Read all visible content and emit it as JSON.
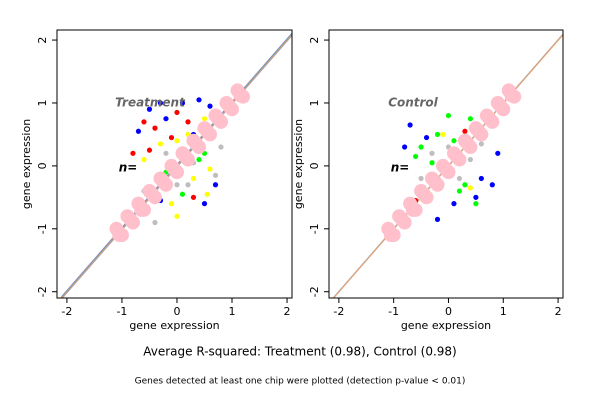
{
  "chart_data": [
    {
      "type": "scatter",
      "x_label": "gene expression",
      "y_label": "gene expression",
      "annotations": [
        "Treatment",
        "n="
      ],
      "xlim": [
        -2.18,
        2.09
      ],
      "ylim": [
        -2.1,
        2.16
      ],
      "xticks": [
        -2,
        -1,
        0,
        1,
        2
      ],
      "yticks": [
        -2,
        -1,
        0,
        1,
        2
      ],
      "diagonal_colors": [
        "#6b6bff",
        "#66cc66",
        "#ff7777",
        "#aaaaaa"
      ],
      "series": [
        {
          "color": "#0000ff",
          "x": [
            -0.5,
            -0.3,
            0.1,
            0.4,
            0.6,
            -0.7,
            -0.2,
            0.3,
            0.7,
            0.5,
            -0.85,
            -0.3
          ],
          "values": [
            0.9,
            1.0,
            1.0,
            1.05,
            0.95,
            0.55,
            0.75,
            0.5,
            -0.3,
            -0.6,
            -0.75,
            -0.55
          ]
        },
        {
          "color": "#ff0000",
          "x": [
            -0.6,
            -0.4,
            -0.1,
            0.2,
            -0.8,
            -0.5,
            0.0,
            -0.9,
            -0.6,
            0.3
          ],
          "values": [
            0.7,
            0.6,
            0.45,
            0.7,
            0.2,
            0.25,
            0.85,
            -0.85,
            -0.7,
            -0.5
          ]
        },
        {
          "color": "#ffff00",
          "x": [
            -0.3,
            0.0,
            0.2,
            0.5,
            -0.6,
            0.6,
            0.3,
            -0.1,
            0.55,
            0.0
          ],
          "values": [
            0.35,
            0.4,
            0.5,
            0.75,
            0.1,
            -0.05,
            -0.2,
            -0.6,
            -0.45,
            -0.8
          ]
        },
        {
          "color": "#00ff00",
          "x": [
            0.4,
            0.1,
            0.5,
            -0.2
          ],
          "values": [
            0.1,
            -0.45,
            0.2,
            -0.1
          ]
        },
        {
          "color": "#bebebe",
          "x": [
            -0.2,
            0.3,
            -0.6,
            0.2,
            0.7,
            -0.4,
            0.8,
            0.0
          ],
          "values": [
            0.2,
            0.05,
            -0.4,
            -0.3,
            -0.15,
            -0.9,
            0.3,
            -0.3
          ]
        },
        {
          "color": "#ffc0cb",
          "x": [
            -1.1,
            -1.0,
            -0.9,
            -0.8,
            -0.7,
            -0.6,
            -0.5,
            -0.4,
            -0.3,
            -0.2,
            -0.1,
            0,
            0.1,
            0.2,
            0.3,
            0.4,
            0.5,
            0.6,
            0.7,
            0.8,
            0.9,
            1.0,
            1.1,
            1.2,
            -1.05,
            -0.85,
            -0.65,
            -0.45,
            -0.25,
            -0.05,
            0.15,
            0.35,
            0.55,
            0.75,
            0.95,
            1.15
          ],
          "values": [
            -1.0,
            -1.1,
            -0.8,
            -0.9,
            -0.6,
            -0.7,
            -0.4,
            -0.5,
            -0.2,
            -0.3,
            0.0,
            -0.1,
            0.2,
            0.1,
            0.4,
            0.3,
            0.6,
            0.5,
            0.8,
            0.7,
            1.0,
            0.9,
            1.2,
            1.1,
            -1.1,
            -0.85,
            -0.7,
            -0.45,
            -0.25,
            -0.05,
            0.15,
            0.35,
            0.55,
            0.75,
            0.95,
            1.12
          ]
        }
      ]
    },
    {
      "type": "scatter",
      "x_label": "gene expression",
      "y_label": "gene expression",
      "annotations": [
        "Control",
        "n="
      ],
      "xlim": [
        -2.18,
        2.09
      ],
      "ylim": [
        -2.1,
        2.16
      ],
      "xticks": [
        -2,
        -1,
        0,
        1,
        2
      ],
      "yticks": [
        -2,
        -1,
        0,
        1,
        2
      ],
      "diagonal_colors": [
        "#aaaaaa",
        "#e8a070"
      ],
      "series": [
        {
          "color": "#00ff00",
          "x": [
            -0.5,
            -0.2,
            0.1,
            -0.6,
            0.3,
            0.5,
            -0.3,
            0.4,
            0.0,
            0.2
          ],
          "values": [
            0.3,
            0.5,
            0.4,
            0.15,
            -0.3,
            -0.6,
            0.05,
            0.75,
            0.8,
            -0.4
          ]
        },
        {
          "color": "#0000ff",
          "x": [
            -0.7,
            -0.4,
            0.6,
            0.8,
            0.5,
            -0.2,
            0.1,
            -0.8,
            0.9
          ],
          "values": [
            0.65,
            0.45,
            -0.2,
            -0.3,
            -0.5,
            -0.85,
            -0.6,
            0.3,
            0.2
          ]
        },
        {
          "color": "#bebebe",
          "x": [
            -0.3,
            0.2,
            0.0,
            -0.5,
            0.4,
            0.6
          ],
          "values": [
            0.2,
            -0.2,
            0.3,
            -0.2,
            0.1,
            0.35
          ]
        },
        {
          "color": "#ff0000",
          "x": [
            -0.6,
            0.3
          ],
          "values": [
            -0.55,
            0.55
          ]
        },
        {
          "color": "#ffff00",
          "x": [
            0.4,
            -0.1
          ],
          "values": [
            -0.35,
            0.5
          ]
        },
        {
          "color": "#ffc0cb",
          "x": [
            -1.1,
            -1.0,
            -0.9,
            -0.8,
            -0.7,
            -0.6,
            -0.5,
            -0.4,
            -0.3,
            -0.2,
            -0.1,
            0,
            0.1,
            0.2,
            0.3,
            0.4,
            0.5,
            0.6,
            0.7,
            0.8,
            0.9,
            1.0,
            1.1,
            1.2,
            -1.05,
            -0.85,
            -0.65,
            -0.45,
            -0.25,
            -0.05,
            0.15,
            0.35,
            0.55,
            0.75,
            0.95,
            1.15
          ],
          "values": [
            -1.0,
            -1.1,
            -0.8,
            -0.9,
            -0.6,
            -0.7,
            -0.4,
            -0.5,
            -0.2,
            -0.3,
            0.0,
            -0.1,
            0.2,
            0.1,
            0.4,
            0.3,
            0.6,
            0.5,
            0.8,
            0.7,
            1.0,
            0.9,
            1.2,
            1.1,
            -1.1,
            -0.85,
            -0.7,
            -0.45,
            -0.25,
            -0.05,
            0.15,
            0.35,
            0.55,
            0.75,
            0.95,
            1.12
          ]
        }
      ]
    }
  ],
  "caption": "Average R-squared: Treatment (0.98), Control (0.98)",
  "footnote": "Genes detected at least one chip were plotted (detection p-value < 0.01)"
}
